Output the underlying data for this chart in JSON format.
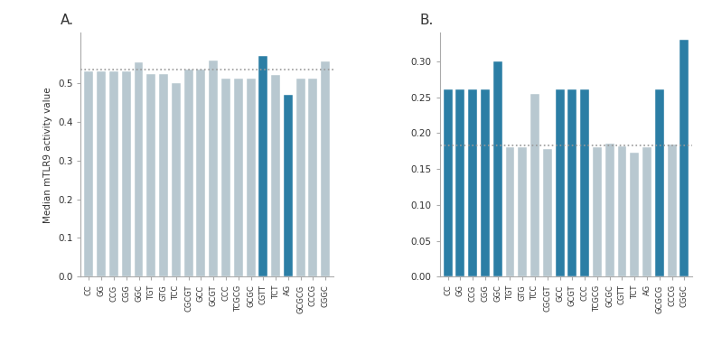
{
  "panel_a": {
    "categories": [
      "CC",
      "GG",
      "CCG",
      "CGG",
      "GGC",
      "TGT",
      "GTG",
      "TCC",
      "CGCGT",
      "GCC",
      "GCGT",
      "CCC",
      "TCGCG",
      "GCGC",
      "CGTT",
      "TCT",
      "AG",
      "GCGCG",
      "CCCG",
      "CGGC"
    ],
    "values": [
      0.53,
      0.53,
      0.53,
      0.53,
      0.554,
      0.524,
      0.523,
      0.5,
      0.535,
      0.534,
      0.558,
      0.511,
      0.511,
      0.511,
      0.57,
      0.52,
      0.47,
      0.511,
      0.511,
      0.555
    ],
    "colors": [
      "#b8c8d0",
      "#b8c8d0",
      "#b8c8d0",
      "#b8c8d0",
      "#b8c8d0",
      "#b8c8d0",
      "#b8c8d0",
      "#b8c8d0",
      "#b8c8d0",
      "#b8c8d0",
      "#b8c8d0",
      "#b8c8d0",
      "#b8c8d0",
      "#b8c8d0",
      "#2b7ea5",
      "#b8c8d0",
      "#2b7ea5",
      "#b8c8d0",
      "#b8c8d0",
      "#b8c8d0"
    ],
    "hline": 0.535,
    "ylabel": "Median mTLR9 activity value",
    "ylim": [
      0.0,
      0.63
    ],
    "yticks": [
      0.0,
      0.1,
      0.2,
      0.3,
      0.4,
      0.5
    ],
    "ytick_labels": [
      "0.0",
      "0.1",
      "0.2",
      "0.3",
      "0.4",
      "0.5"
    ],
    "label": "A."
  },
  "panel_b": {
    "categories": [
      "CC",
      "GG",
      "CCG",
      "CGG",
      "GGC",
      "TGT",
      "GTG",
      "TCC",
      "CGCGT",
      "GCC",
      "GCGT",
      "CCC",
      "TCGCG",
      "GCGC",
      "CGTT",
      "TCT",
      "AG",
      "GCGCG",
      "CCCG",
      "CGGC"
    ],
    "values": [
      0.261,
      0.261,
      0.261,
      0.261,
      0.3,
      0.18,
      0.18,
      0.255,
      0.178,
      0.261,
      0.261,
      0.261,
      0.18,
      0.186,
      0.182,
      0.173,
      0.181,
      0.261,
      0.184,
      0.33
    ],
    "colors": [
      "#2b7ea5",
      "#2b7ea5",
      "#2b7ea5",
      "#2b7ea5",
      "#2b7ea5",
      "#b8c8d0",
      "#b8c8d0",
      "#b8c8d0",
      "#b8c8d0",
      "#2b7ea5",
      "#2b7ea5",
      "#2b7ea5",
      "#b8c8d0",
      "#b8c8d0",
      "#b8c8d0",
      "#b8c8d0",
      "#b8c8d0",
      "#2b7ea5",
      "#b8c8d0",
      "#2b7ea5"
    ],
    "hline": 0.183,
    "ylim": [
      0.0,
      0.34
    ],
    "yticks": [
      0.0,
      0.05,
      0.1,
      0.15,
      0.2,
      0.25,
      0.3
    ],
    "ytick_labels": [
      "0.00",
      "0.05",
      "0.10",
      "0.15",
      "0.20",
      "0.25",
      "0.30"
    ],
    "label": "B."
  },
  "background_color": "#ffffff",
  "bar_edge_color": "white",
  "hline_color": "#999999",
  "hline_style": ":",
  "hline_lw": 1.2
}
